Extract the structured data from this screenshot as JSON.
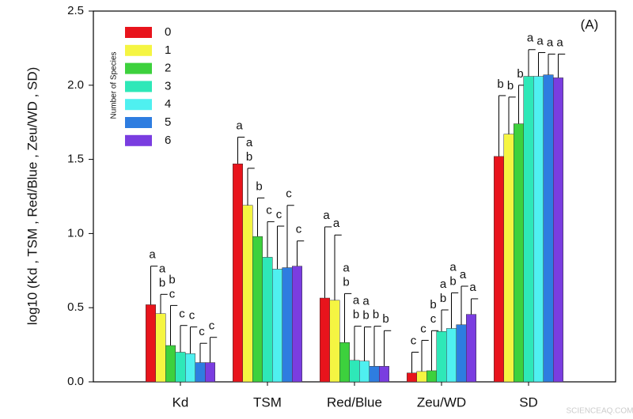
{
  "chart_data": {
    "type": "bar",
    "ylabel": "log10 (Kd , TSM , Red/Blue , Zeu/WD , SD)",
    "annotation": "(A)",
    "watermark": "SCIENCEAQ.COM",
    "legend_title": "Number of Species",
    "legend": "upper left",
    "categories": [
      "Kd",
      "TSM",
      "Red/Blue",
      "Zeu/WD",
      "SD"
    ],
    "ylim": [
      0,
      2.5
    ],
    "yticks": [
      {
        "value": 0,
        "label": "0.0"
      },
      {
        "value": 0.5,
        "label": "0.5"
      },
      {
        "value": 1,
        "label": "1.0"
      },
      {
        "value": 1.5,
        "label": "1.5"
      },
      {
        "value": 2,
        "label": "2.0"
      },
      {
        "value": 2.5,
        "label": "2.5"
      }
    ],
    "series": [
      {
        "name": "0",
        "color": "#e8141c",
        "values": [
          0.52,
          1.47,
          0.565,
          0.06,
          1.52
        ],
        "errors": [
          0.26,
          0.18,
          0.48,
          0.14,
          0.41
        ],
        "letters": [
          [
            "a"
          ],
          [
            "a"
          ],
          [
            "a"
          ],
          [
            "c"
          ],
          [
            "b"
          ]
        ]
      },
      {
        "name": "1",
        "color": "#f5f542",
        "values": [
          0.46,
          1.19,
          0.55,
          0.07,
          1.67
        ],
        "errors": [
          0.13,
          0.25,
          0.44,
          0.21,
          0.25
        ],
        "letters": [
          [
            "a",
            "b"
          ],
          [
            "a",
            "b"
          ],
          [
            "a"
          ],
          [
            "c"
          ],
          [
            "b"
          ]
        ]
      },
      {
        "name": "2",
        "color": "#3dd13d",
        "values": [
          0.245,
          0.98,
          0.265,
          0.075,
          1.74
        ],
        "errors": [
          0.27,
          0.26,
          0.33,
          0.27,
          0.26
        ],
        "letters": [
          [
            "b",
            "c"
          ],
          [
            "b"
          ],
          [
            "a",
            "b"
          ],
          [
            "b",
            "c"
          ],
          [
            "b"
          ]
        ]
      },
      {
        "name": "3",
        "color": "#2ee8b8",
        "values": [
          0.2,
          0.84,
          0.145,
          0.34,
          2.06
        ],
        "errors": [
          0.18,
          0.24,
          0.23,
          0.145,
          0.18
        ],
        "letters": [
          [
            "c"
          ],
          [
            "c"
          ],
          [
            "a",
            "b"
          ],
          [
            "a",
            "b"
          ],
          [
            "a"
          ]
        ]
      },
      {
        "name": "4",
        "color": "#4ff0f0",
        "values": [
          0.19,
          0.76,
          0.14,
          0.36,
          2.06
        ],
        "errors": [
          0.18,
          0.29,
          0.23,
          0.24,
          0.16
        ],
        "letters": [
          [
            "c"
          ],
          [
            "c"
          ],
          [
            "a",
            "b"
          ],
          [
            "a",
            "b"
          ],
          [
            "a"
          ]
        ]
      },
      {
        "name": "5",
        "color": "#2e7de0",
        "values": [
          0.13,
          0.77,
          0.105,
          0.385,
          2.07
        ],
        "errors": [
          0.13,
          0.42,
          0.27,
          0.26,
          0.14
        ],
        "letters": [
          [
            "c"
          ],
          [
            "c"
          ],
          [
            "b"
          ],
          [
            "a"
          ],
          [
            "a"
          ]
        ]
      },
      {
        "name": "6",
        "color": "#7a3de0",
        "values": [
          0.13,
          0.78,
          0.105,
          0.455,
          2.05
        ],
        "errors": [
          0.17,
          0.17,
          0.24,
          0.105,
          0.16
        ],
        "letters": [
          [
            "c"
          ],
          [
            "c"
          ],
          [
            "b"
          ],
          [
            "a"
          ],
          [
            "a"
          ]
        ]
      }
    ]
  }
}
